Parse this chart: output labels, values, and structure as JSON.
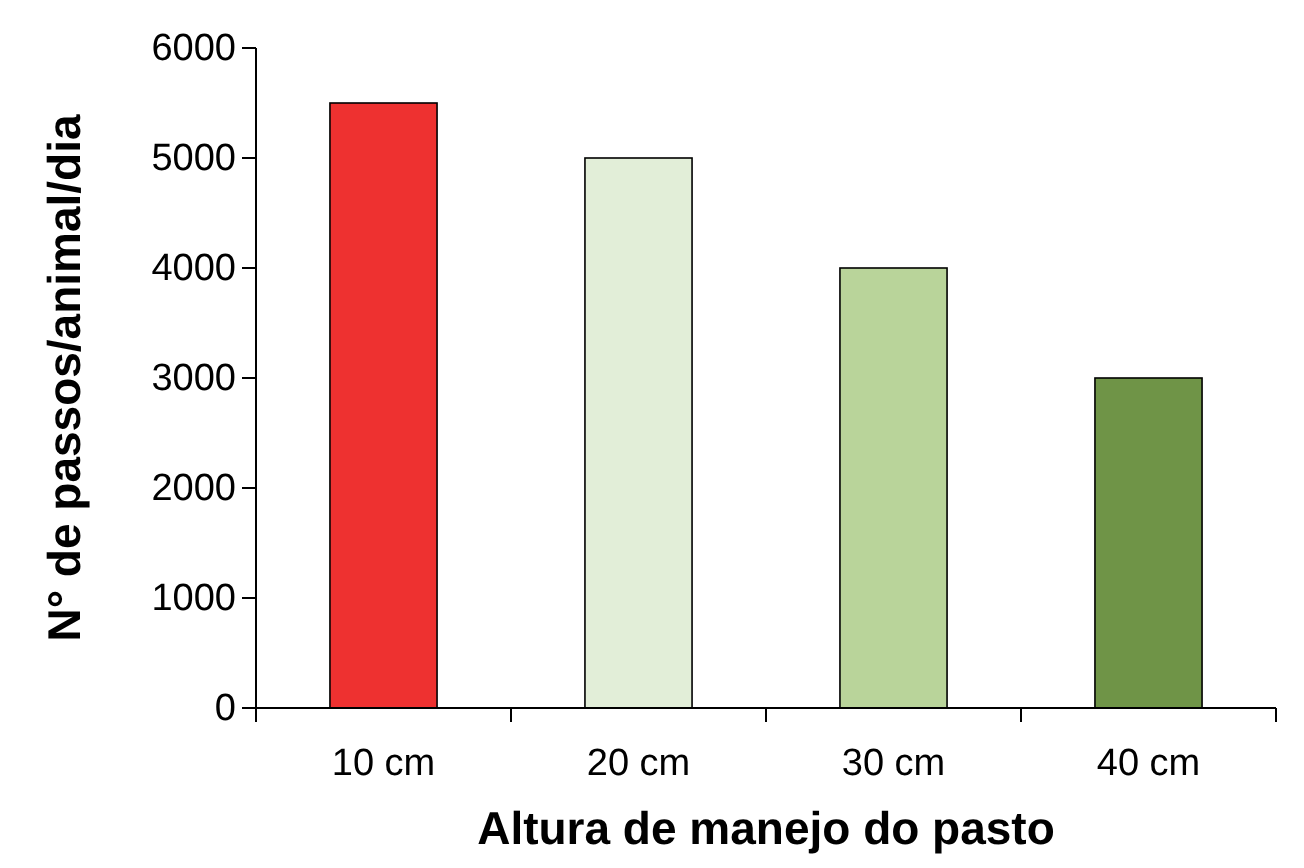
{
  "chart_data": {
    "type": "bar",
    "xlabel": "Altura de manejo do pasto",
    "ylabel": "N° de passos/animal/dia",
    "categories": [
      "10 cm",
      "20 cm",
      "30 cm",
      "40 cm"
    ],
    "values": [
      5500,
      5000,
      4000,
      3000
    ],
    "colors": [
      "#ee3130",
      "#e2eed8",
      "#b9d49a",
      "#6f9447"
    ],
    "ylim": [
      0,
      6000
    ],
    "yticks": [
      0,
      1000,
      2000,
      3000,
      4000,
      5000,
      6000
    ]
  }
}
